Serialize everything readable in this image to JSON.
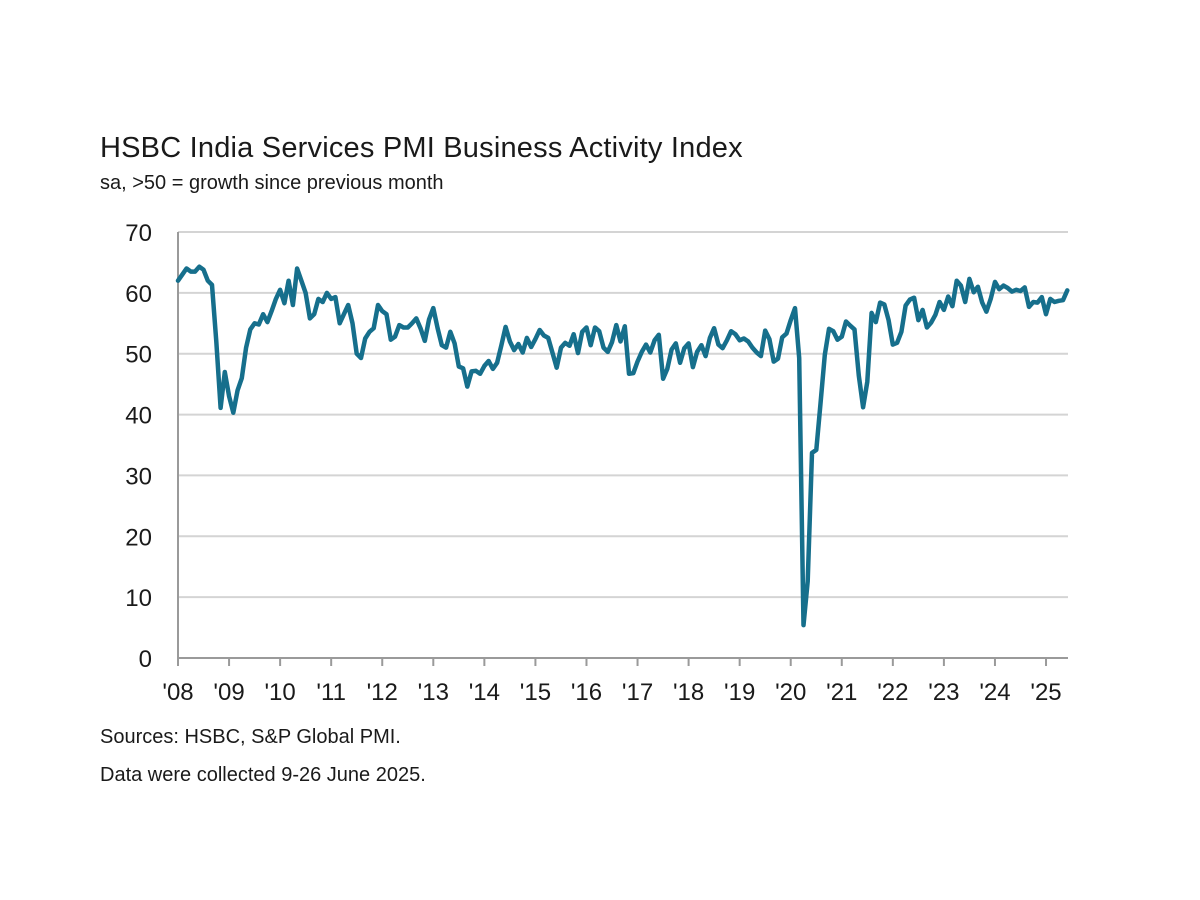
{
  "chart_data": {
    "type": "line",
    "title": "HSBC India Services PMI Business Activity Index",
    "subtitle": "sa, >50 = growth since previous month",
    "xlabel": "",
    "ylabel": "",
    "ylim": [
      0,
      70
    ],
    "y_ticks": [
      "0",
      "10",
      "20",
      "30",
      "40",
      "50",
      "60",
      "70"
    ],
    "x_ticks": [
      "'08",
      "'09",
      "'10",
      "'11",
      "'12",
      "'13",
      "'14",
      "'15",
      "'16",
      "'17",
      "'18",
      "'19",
      "'20",
      "'21",
      "'22",
      "'23",
      "'24",
      "'25"
    ],
    "x_start": "2008-01",
    "x_end": "2025-06",
    "frequency": "monthly",
    "grid": "horizontal",
    "line_color": "#166f8c",
    "series": [
      {
        "values": [
          62,
          63,
          64,
          63.5,
          63.5,
          64.3,
          63.8,
          62,
          61.3,
          52,
          41.1,
          47,
          43,
          40.3,
          44,
          46,
          51,
          54,
          55,
          54.8,
          56.5,
          55.2,
          57,
          59,
          60.5,
          58.3,
          62,
          58,
          64,
          62,
          60,
          55.8,
          56.5,
          59,
          58.5,
          60,
          59,
          59.3,
          55,
          56.5,
          58,
          55,
          50,
          49.3,
          52.5,
          53.6,
          54.2,
          58,
          57,
          56.5,
          52.3,
          52.8,
          54.7,
          54.3,
          54.3,
          55,
          55.8,
          54.2,
          52.1,
          55.6,
          57.5,
          54.2,
          51.4,
          51,
          53.6,
          51.7,
          47.9,
          47.6,
          44.6,
          47.1,
          47.2,
          46.7,
          48,
          48.8,
          47.5,
          48.5,
          51.4,
          54.4,
          52,
          50.6,
          51.6,
          50.2,
          52.6,
          51.1,
          52.4,
          53.9,
          53,
          52.6,
          50.2,
          47.7,
          51,
          51.8,
          51.3,
          53.2,
          50.1,
          53.6,
          54.3,
          51.4,
          54.3,
          53.7,
          51,
          50.3,
          51.9,
          54.7,
          52,
          54.5,
          46.7,
          46.8,
          48.7,
          50.3,
          51.5,
          50.2,
          52.2,
          53.1,
          45.9,
          47.5,
          50.7,
          51.7,
          48.5,
          50.9,
          51.7,
          47.8,
          50.3,
          51.4,
          49.6,
          52.6,
          54.2,
          51.5,
          50.9,
          52.2,
          53.7,
          53.2,
          52.2,
          52.5,
          52,
          51,
          50.2,
          49.6,
          53.8,
          52.4,
          48.7,
          49.2,
          52.7,
          53.3,
          55.5,
          57.5,
          49.3,
          5.4,
          12.6,
          33.7,
          34.2,
          41.8,
          49.8,
          54.1,
          53.7,
          52.3,
          52.8,
          55.3,
          54.6,
          54,
          46.4,
          41.2,
          45.4,
          56.7,
          55.2,
          58.4,
          58.1,
          55.5,
          51.5,
          51.8,
          53.6,
          57.9,
          58.9,
          59.2,
          55.5,
          57.2,
          54.3,
          55.1,
          56.4,
          58.5,
          57.2,
          59.4,
          57.8,
          62,
          61.2,
          58.5,
          62.3,
          60.1,
          61,
          58.4,
          56.9,
          59,
          61.8,
          60.6,
          61.2,
          60.8,
          60.2,
          60.5,
          60.3,
          60.9,
          57.7,
          58.5,
          58.4,
          59.3,
          56.5,
          59,
          58.5,
          58.7,
          58.8,
          60.4
        ]
      }
    ]
  },
  "footer": {
    "sources": "Sources: HSBC, S&P Global PMI.",
    "collection": "Data were collected 9-26 June 2025."
  }
}
